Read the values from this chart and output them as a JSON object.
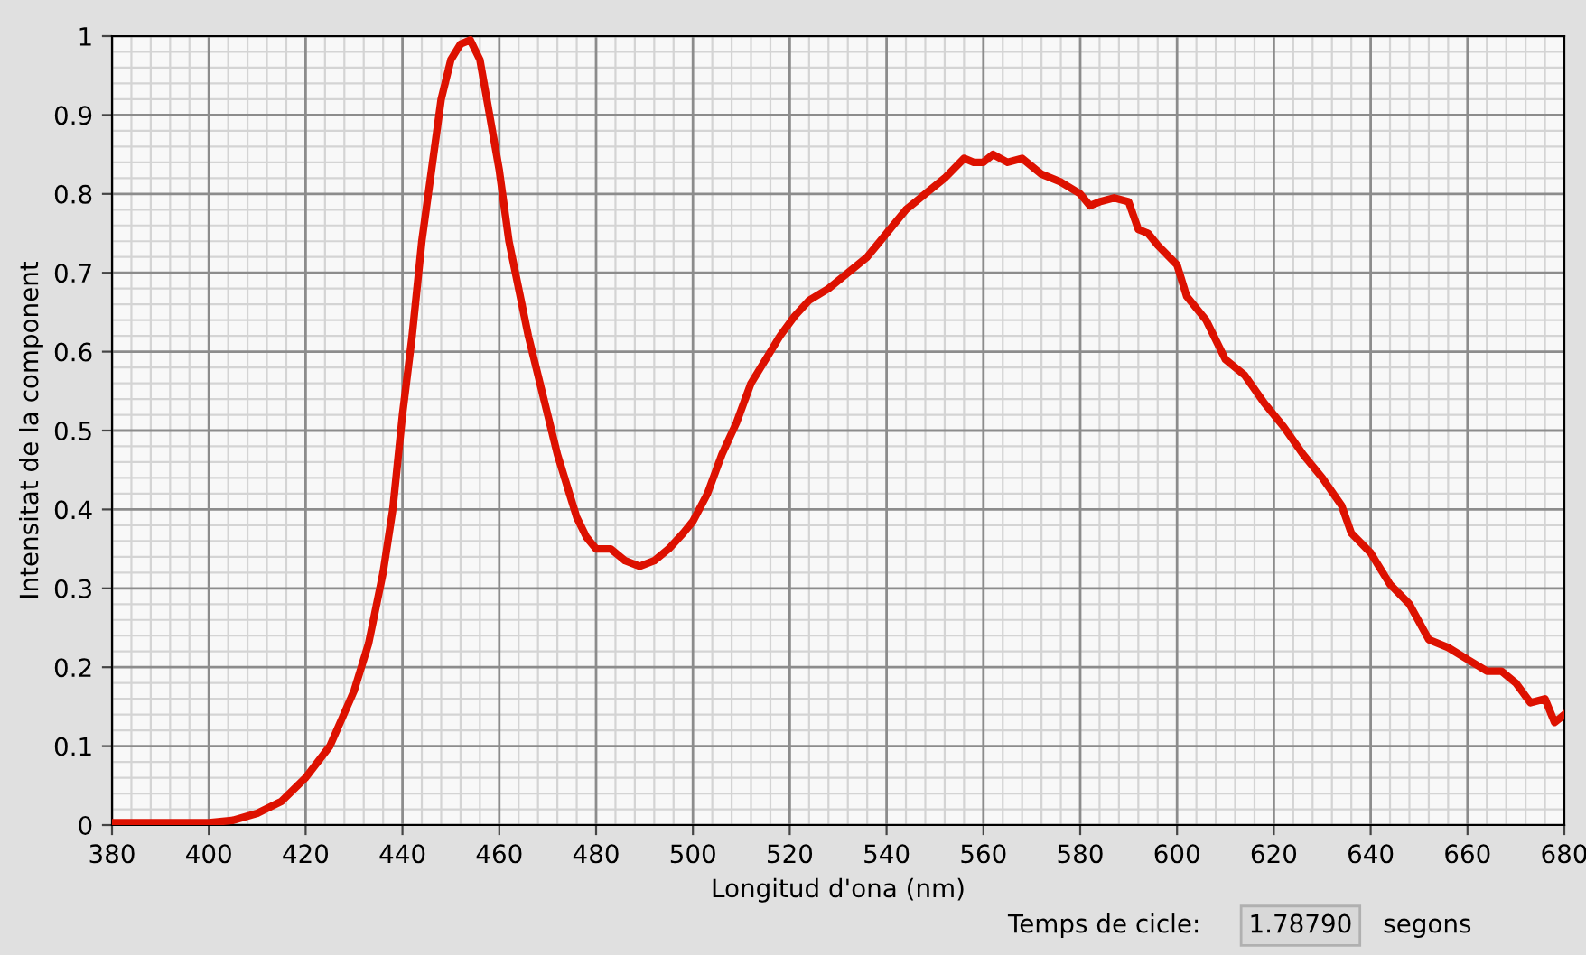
{
  "chart_data": {
    "type": "line",
    "xlabel": "Longitud d'ona (nm)",
    "ylabel": "Intensitat de la component",
    "xlim": [
      380,
      680
    ],
    "ylim": [
      0,
      1
    ],
    "xticks": [
      380,
      400,
      420,
      440,
      460,
      480,
      500,
      520,
      540,
      560,
      580,
      600,
      620,
      640,
      660,
      680
    ],
    "yticks": [
      0,
      0.1,
      0.2,
      0.3,
      0.4,
      0.5,
      0.6,
      0.7,
      0.8,
      0.9,
      1
    ],
    "grid": true,
    "marker": "none",
    "line_style": "solid",
    "annotations": [
      "Temps de cicle:",
      "1.78790",
      "segons"
    ],
    "series": [
      {
        "color": "#dd1100",
        "x": [
          380,
          400,
          405,
          410,
          415,
          420,
          425,
          430,
          433,
          436,
          438,
          440,
          442,
          444,
          446,
          448,
          450,
          452,
          454,
          456,
          458,
          460,
          462,
          464,
          466,
          468,
          470,
          472,
          474,
          476,
          478,
          480,
          483,
          486,
          489,
          492,
          495,
          498,
          500,
          503,
          506,
          509,
          512,
          515,
          518,
          521,
          524,
          528,
          532,
          536,
          540,
          544,
          548,
          552,
          556,
          558,
          560,
          562,
          565,
          568,
          572,
          576,
          580,
          582,
          584,
          587,
          590,
          592,
          594,
          596,
          600,
          602,
          606,
          610,
          614,
          618,
          622,
          626,
          630,
          634,
          636,
          640,
          644,
          648,
          652,
          656,
          660,
          664,
          667,
          670,
          673,
          676,
          678,
          680
        ],
        "values": [
          0.003,
          0.003,
          0.006,
          0.015,
          0.03,
          0.06,
          0.1,
          0.17,
          0.23,
          0.32,
          0.4,
          0.52,
          0.62,
          0.74,
          0.83,
          0.92,
          0.97,
          0.99,
          0.995,
          0.97,
          0.9,
          0.83,
          0.74,
          0.68,
          0.62,
          0.57,
          0.52,
          0.47,
          0.43,
          0.39,
          0.365,
          0.35,
          0.35,
          0.335,
          0.328,
          0.335,
          0.35,
          0.37,
          0.385,
          0.42,
          0.47,
          0.51,
          0.56,
          0.59,
          0.62,
          0.645,
          0.665,
          0.68,
          0.7,
          0.72,
          0.75,
          0.78,
          0.8,
          0.82,
          0.845,
          0.84,
          0.84,
          0.85,
          0.84,
          0.845,
          0.825,
          0.815,
          0.8,
          0.785,
          0.79,
          0.795,
          0.79,
          0.755,
          0.75,
          0.735,
          0.71,
          0.67,
          0.64,
          0.59,
          0.57,
          0.535,
          0.505,
          0.47,
          0.44,
          0.405,
          0.37,
          0.345,
          0.305,
          0.28,
          0.235,
          0.225,
          0.21,
          0.195,
          0.195,
          0.18,
          0.155,
          0.16,
          0.13,
          0.14
        ]
      }
    ]
  }
}
